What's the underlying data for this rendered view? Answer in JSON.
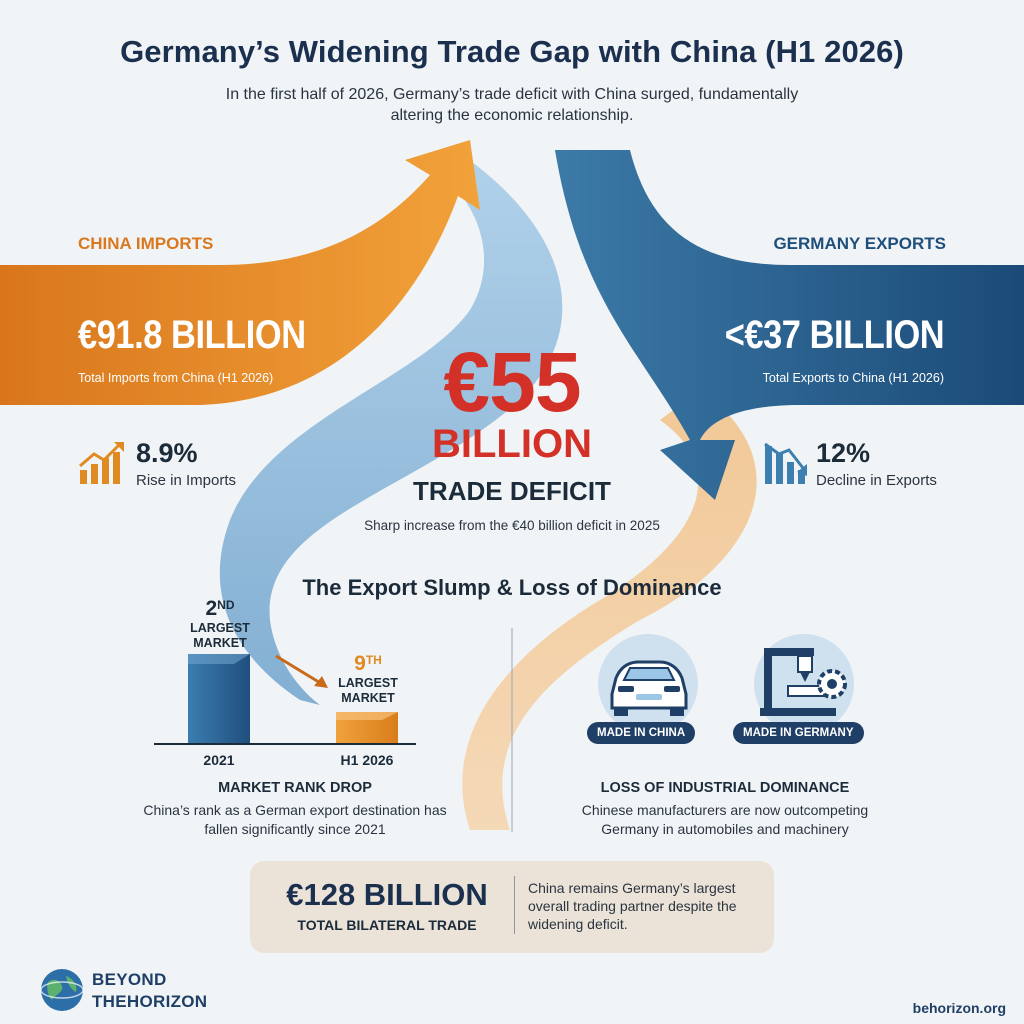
{
  "title": "Germany’s Widening Trade Gap with China (H1 2026)",
  "subtitle": "In the first half of 2026, Germany’s trade deficit with China surged, fundamentally altering the economic relationship.",
  "imports": {
    "label": "CHINA IMPORTS",
    "value": "€91.8 BILLION",
    "caption": "Total Imports from China (H1 2026)",
    "change": "8.9%",
    "change_caption": "Rise in Imports",
    "icon": "chart-rising-icon",
    "color": "#e58a2a"
  },
  "exports": {
    "label": "GERMANY EXPORTS",
    "value": "<€37 BILLION",
    "caption": "Total Exports to China (H1 2026)",
    "change": "12%",
    "change_caption": "Decline in Exports",
    "icon": "chart-falling-icon",
    "color": "#1f5a86"
  },
  "deficit": {
    "value": "€55",
    "unit": "BILLION",
    "label": "TRADE DEFICIT",
    "note": "Sharp increase from the €40 billion deficit in 2025",
    "color": "#d33027"
  },
  "section_title": "The Export Slump & Loss of Dominance",
  "market_rank": {
    "rank_2021": {
      "num": "2",
      "suffix": "ND",
      "line1": "LARGEST",
      "line2": "MARKET"
    },
    "rank_2026": {
      "num": "9",
      "suffix": "TH",
      "line1": "LARGEST",
      "line2": "MARKET"
    },
    "x_2021": "2021",
    "x_2026": "H1 2026",
    "heading": "MARKET RANK DROP",
    "body": "China’s rank as a German export destination has fallen significantly since 2021",
    "rank_values": [
      2,
      9
    ]
  },
  "dominance": {
    "badge_china": "MADE IN CHINA",
    "badge_germany": "MADE IN GERMANY",
    "icon_china": "car-icon",
    "icon_germany": "machinery-gear-icon",
    "heading": "LOSS OF INDUSTRIAL DOMINANCE",
    "body": "Chinese manufacturers are now outcompeting Germany in automobiles and machinery"
  },
  "total": {
    "value": "€128 BILLION",
    "label": "TOTAL BILATERAL TRADE",
    "note": "China remains Germany’s largest overall trading partner despite the widening deficit."
  },
  "brand": {
    "line1": "BEYOND",
    "line2": "THEHORIZON",
    "icon": "globe-icon"
  },
  "website": "behorizon.org"
}
